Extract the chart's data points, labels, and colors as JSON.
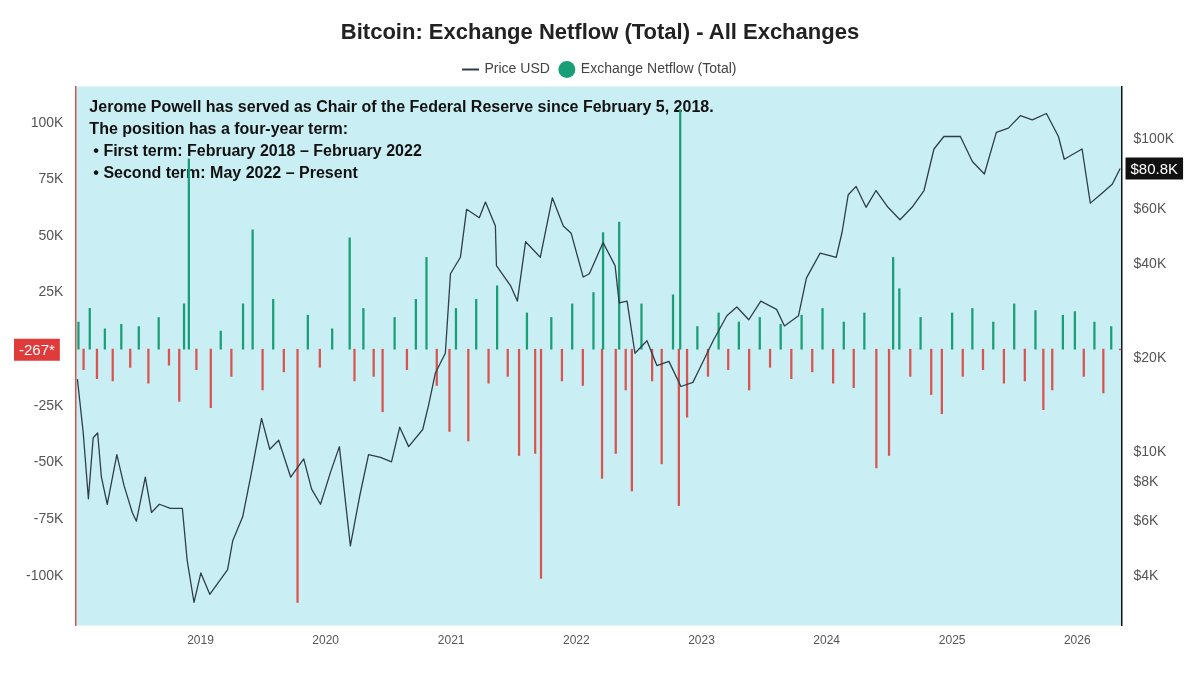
{
  "chart_data": {
    "type": "bar",
    "title": "Bitcoin: Exchange Netflow (Total) - All Exchanges",
    "annotations": [
      "Jerome Powell has served as Chair of the Federal Reserve since February 5, 2018.",
      "The position has a four-year term:",
      "• First term: February 2018 – February 2022",
      "• Second term: May 2022 – Present",
      "-267*",
      "$80.8K"
    ],
    "legend": "top",
    "marker": "none",
    "log": "y2",
    "grid": false,
    "xlim": [
      "2018-01-01",
      "2026-05-10"
    ],
    "xticks": [
      "2019",
      "2020",
      "2021",
      "2022",
      "2023",
      "2024",
      "2025",
      "2026"
    ],
    "ylim": [
      -122000,
      116000
    ],
    "yticks": [
      {
        "value": -100000,
        "label": "-100K"
      },
      {
        "value": -75000,
        "label": "-75K"
      },
      {
        "value": -50000,
        "label": "-50K"
      },
      {
        "value": -25000,
        "label": "-25K"
      },
      {
        "value": 25000,
        "label": "25K"
      },
      {
        "value": 50000,
        "label": "50K"
      },
      {
        "value": 75000,
        "label": "75K"
      },
      {
        "value": 100000,
        "label": "100K"
      }
    ],
    "y2lim": [
      2780,
      148000
    ],
    "y2ticks": [
      {
        "value": 4000,
        "label": "$4K"
      },
      {
        "value": 6000,
        "label": "$6K"
      },
      {
        "value": 8000,
        "label": "$8K"
      },
      {
        "value": 10000,
        "label": "$10K"
      },
      {
        "value": 20000,
        "label": "$20K"
      },
      {
        "value": 40000,
        "label": "$40K"
      },
      {
        "value": 60000,
        "label": "$60K"
      },
      {
        "value": 100000,
        "label": "$100K"
      }
    ],
    "series": [
      {
        "name": "Price USD",
        "type": "line",
        "axis": "y2",
        "color": "#2f3e46",
        "x": [
          "2018-01-07",
          "2018-01-24",
          "2018-02-08",
          "2018-02-22",
          "2018-03-07",
          "2018-03-18",
          "2018-04-04",
          "2018-05-02",
          "2018-05-23",
          "2018-06-16",
          "2018-06-28",
          "2018-07-24",
          "2018-08-11",
          "2018-09-03",
          "2018-10-05",
          "2018-11-09",
          "2018-11-23",
          "2018-12-13",
          "2019-01-02",
          "2019-01-28",
          "2019-03-21",
          "2019-04-05",
          "2019-05-04",
          "2019-05-27",
          "2019-06-28",
          "2019-07-22",
          "2019-08-17",
          "2019-09-21",
          "2019-10-29",
          "2019-11-21",
          "2019-12-17",
          "2020-01-15",
          "2020-02-10",
          "2020-03-13",
          "2020-04-09",
          "2020-05-05",
          "2020-06-09",
          "2020-07-11",
          "2020-08-04",
          "2020-08-30",
          "2020-10-10",
          "2020-10-27",
          "2020-11-16",
          "2020-12-15",
          "2020-12-30",
          "2021-01-28",
          "2021-02-15",
          "2021-03-24",
          "2021-04-11",
          "2021-05-10",
          "2021-05-13",
          "2021-06-23",
          "2021-07-13",
          "2021-08-06",
          "2021-09-18",
          "2021-10-23",
          "2021-11-24",
          "2021-12-17",
          "2022-01-21",
          "2022-02-08",
          "2022-03-20",
          "2022-04-24",
          "2022-05-06",
          "2022-05-29",
          "2022-06-21",
          "2022-07-26",
          "2022-08-24",
          "2022-09-28",
          "2022-11-02",
          "2022-12-07",
          "2022-12-31",
          "2023-02-04",
          "2023-03-16",
          "2023-04-14",
          "2023-05-19",
          "2023-06-23",
          "2023-08-08",
          "2023-08-31",
          "2023-10-11",
          "2023-11-03",
          "2023-12-13",
          "2024-01-29",
          "2024-02-15",
          "2024-03-04",
          "2024-03-27",
          "2024-04-25",
          "2024-05-24",
          "2024-06-28",
          "2024-08-02",
          "2024-09-06",
          "2024-10-11",
          "2024-11-09",
          "2024-12-08",
          "2025-01-25",
          "2025-03-01",
          "2025-04-05",
          "2025-05-10",
          "2025-06-14",
          "2025-07-19",
          "2025-08-23",
          "2025-10-03",
          "2025-11-07",
          "2025-11-24",
          "2026-01-15",
          "2026-02-08",
          "2026-03-09",
          "2026-04-13",
          "2026-05-06"
        ],
        "values": [
          17100,
          11500,
          7080,
          11100,
          11500,
          8300,
          6800,
          9800,
          7800,
          6400,
          6000,
          8300,
          6400,
          6800,
          6600,
          6600,
          4500,
          3300,
          4100,
          3500,
          4200,
          5200,
          6200,
          8300,
          12800,
          10200,
          10900,
          8300,
          9500,
          7600,
          6800,
          8600,
          10400,
          5000,
          7200,
          9800,
          9600,
          9300,
          12000,
          10400,
          11800,
          14100,
          17900,
          20700,
          37200,
          42000,
          59800,
          56200,
          63100,
          52900,
          39500,
          34100,
          30400,
          47100,
          42000,
          65100,
          52900,
          50100,
          36300,
          37200,
          46800,
          39500,
          30000,
          30400,
          20700,
          22700,
          18900,
          19500,
          16200,
          16700,
          18900,
          22700,
          27300,
          29100,
          26500,
          30400,
          28600,
          25300,
          27300,
          36000,
          43300,
          42000,
          50500,
          66600,
          70800,
          60700,
          68700,
          60700,
          55400,
          60700,
          68700,
          93300,
          102300,
          102300,
          85100,
          77600,
          105500,
          108800,
          119300,
          115600,
          121200,
          102300,
          86500,
          93300,
          62600,
          66600,
          71900,
          80800
        ]
      },
      {
        "name": "Exchange Netflow (Total)",
        "color": "#1a9e77",
        "x": [
          "2018-01-10",
          "2018-01-25",
          "2018-02-12",
          "2018-03-05",
          "2018-03-28",
          "2018-04-20",
          "2018-05-15",
          "2018-06-10",
          "2018-07-05",
          "2018-08-02",
          "2018-09-01",
          "2018-10-01",
          "2018-10-31",
          "2018-11-14",
          "2018-11-28",
          "2018-12-20",
          "2019-01-31",
          "2019-03-01",
          "2019-04-01",
          "2019-05-05",
          "2019-06-02",
          "2019-07-01",
          "2019-08-01",
          "2019-09-01",
          "2019-10-11",
          "2019-11-10",
          "2019-12-15",
          "2020-01-20",
          "2020-03-11",
          "2020-03-25",
          "2020-04-20",
          "2020-05-20",
          "2020-06-15",
          "2020-07-20",
          "2020-08-25",
          "2020-09-20",
          "2020-10-21",
          "2020-11-20",
          "2020-12-27",
          "2021-01-15",
          "2021-02-20",
          "2021-03-15",
          "2021-04-20",
          "2021-05-15",
          "2021-06-15",
          "2021-07-18",
          "2021-08-10",
          "2021-09-03",
          "2021-09-20",
          "2021-10-20",
          "2021-11-20",
          "2021-12-20",
          "2022-01-20",
          "2022-02-20",
          "2022-03-17",
          "2022-03-20",
          "2022-04-26",
          "2022-05-06",
          "2022-05-25",
          "2022-06-12",
          "2022-07-10",
          "2022-08-10",
          "2022-09-07",
          "2022-10-10",
          "2022-10-27",
          "2022-10-31",
          "2022-11-20",
          "2022-12-20",
          "2023-01-20",
          "2023-02-20",
          "2023-03-20",
          "2023-04-20",
          "2023-05-20",
          "2023-06-20",
          "2023-07-20",
          "2023-08-20",
          "2023-09-20",
          "2023-10-20",
          "2023-11-20",
          "2023-12-20",
          "2024-01-20",
          "2024-02-20",
          "2024-03-20",
          "2024-04-20",
          "2024-05-25",
          "2024-07-01",
          "2024-07-13",
          "2024-07-31",
          "2024-09-01",
          "2024-10-01",
          "2024-11-01",
          "2024-12-02",
          "2025-01-01",
          "2025-02-01",
          "2025-03-01",
          "2025-04-01",
          "2025-05-01",
          "2025-06-01",
          "2025-07-01",
          "2025-08-01",
          "2025-09-01",
          "2025-09-24",
          "2025-10-20",
          "2025-11-20",
          "2025-12-25",
          "2026-01-20",
          "2026-02-20",
          "2026-03-18",
          "2026-04-10",
          "2026-05-06"
        ],
        "values": [
          12000,
          -9000,
          18000,
          -13000,
          9000,
          -14000,
          11000,
          -8000,
          10000,
          -15000,
          14000,
          -7000,
          -23000,
          20000,
          84000,
          -9000,
          -25800,
          8000,
          -12000,
          20000,
          52700,
          -18000,
          22000,
          -10000,
          -111800,
          15000,
          -8000,
          9000,
          49200,
          -14000,
          18000,
          -12000,
          -27600,
          14000,
          -9000,
          22000,
          40500,
          -16000,
          -36300,
          18000,
          -40500,
          22000,
          -15000,
          28000,
          -12000,
          -46900,
          16000,
          -46000,
          -101200,
          14000,
          -14000,
          20000,
          -16000,
          25000,
          -57000,
          51500,
          -46000,
          56100,
          -18000,
          -62600,
          20000,
          -14000,
          -50600,
          24000,
          -69000,
          105800,
          -30000,
          10000,
          -12000,
          16000,
          -9000,
          12000,
          -18000,
          14000,
          -8000,
          11000,
          -13000,
          15000,
          -10000,
          18000,
          -15000,
          12000,
          -17000,
          16000,
          -52400,
          -46900,
          40500,
          26700,
          -12000,
          14000,
          -20000,
          -28500,
          16000,
          -12000,
          18000,
          -9000,
          12000,
          -15000,
          20000,
          -14000,
          17000,
          -26700,
          -18000,
          15000,
          16600,
          -12000,
          12000,
          -19300,
          10000,
          -267
        ],
        "colors": [
          "#1a9e77",
          "#d9544f",
          "#1a9e77",
          "#d9544f",
          "#1a9e77",
          "#d9544f",
          "#1a9e77",
          "#d9544f",
          "#1a9e77",
          "#d9544f",
          "#1a9e77",
          "#d9544f",
          "#d9544f",
          "#1a9e77",
          "#1a9e77",
          "#d9544f",
          "#d9544f",
          "#1a9e77",
          "#d9544f",
          "#1a9e77",
          "#1a9e77",
          "#d9544f",
          "#1a9e77",
          "#d9544f",
          "#d9544f",
          "#1a9e77",
          "#d9544f",
          "#1a9e77",
          "#1a9e77",
          "#d9544f",
          "#1a9e77",
          "#d9544f",
          "#d9544f",
          "#1a9e77",
          "#d9544f",
          "#1a9e77",
          "#1a9e77",
          "#d9544f",
          "#d9544f",
          "#1a9e77",
          "#d9544f",
          "#1a9e77",
          "#d9544f",
          "#1a9e77",
          "#d9544f",
          "#d9544f",
          "#1a9e77",
          "#d9544f",
          "#d9544f",
          "#1a9e77",
          "#d9544f",
          "#1a9e77",
          "#d9544f",
          "#1a9e77",
          "#d9544f",
          "#1a9e77",
          "#d9544f",
          "#1a9e77",
          "#d9544f",
          "#d9544f",
          "#1a9e77",
          "#d9544f",
          "#d9544f",
          "#1a9e77",
          "#d9544f",
          "#1a9e77",
          "#d9544f",
          "#1a9e77",
          "#d9544f",
          "#1a9e77",
          "#d9544f",
          "#1a9e77",
          "#d9544f",
          "#1a9e77",
          "#d9544f",
          "#1a9e77",
          "#d9544f",
          "#1a9e77",
          "#d9544f",
          "#1a9e77",
          "#d9544f",
          "#1a9e77",
          "#d9544f",
          "#1a9e77",
          "#d9544f",
          "#d9544f",
          "#1a9e77",
          "#1a9e77",
          "#d9544f",
          "#1a9e77",
          "#d9544f",
          "#d9544f",
          "#1a9e77",
          "#d9544f",
          "#1a9e77",
          "#d9544f",
          "#1a9e77",
          "#d9544f",
          "#1a9e77",
          "#d9544f",
          "#1a9e77",
          "#d9544f",
          "#d9544f",
          "#1a9e77",
          "#1a9e77",
          "#d9544f",
          "#1a9e77",
          "#d9544f",
          "#1a9e77",
          "#d9544f"
        ]
      }
    ]
  }
}
